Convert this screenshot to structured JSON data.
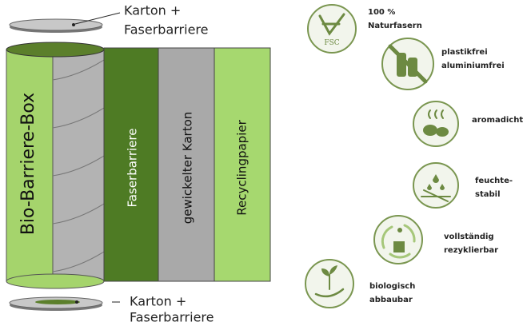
{
  "top_lid": {
    "lines": [
      "Karton +",
      "Faserbarriere"
    ]
  },
  "box": {
    "label": "Bio-Barriere-Box"
  },
  "layers": [
    "Faserbarriere",
    "gewickelter Karton",
    "Recyclingpapier"
  ],
  "bottom_lid": {
    "lines": [
      "Karton +",
      "Faserbarriere"
    ]
  },
  "fsc_logo": "FSC",
  "features": [
    {
      "lines": [
        "100 %",
        "Naturfasern"
      ]
    },
    {
      "lines": [
        "plastikfrei",
        "aluminiumfrei"
      ]
    },
    {
      "lines": [
        "aromadicht"
      ]
    },
    {
      "lines": [
        "feuchte-",
        "stabil"
      ]
    },
    {
      "lines": [
        "vollständig",
        "rezyklierbar"
      ]
    },
    {
      "lines": [
        "biologisch",
        "abbaubar"
      ]
    }
  ]
}
